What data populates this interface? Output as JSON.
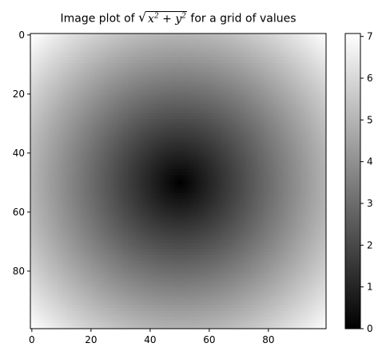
{
  "chart_data": [
    {
      "type": "heatmap",
      "title_text_before": "Image plot of",
      "title_math": {
        "radical_prefix": "√",
        "base1": "x",
        "exp1": "2",
        "op": " + ",
        "base2": "y",
        "exp2": "2"
      },
      "title_text_after": "for a grid of values",
      "function": "sqrt(x^2 + y^2)",
      "grid_size": [
        100,
        100
      ],
      "x_domain": [
        -5,
        4.9
      ],
      "y_domain": [
        -5,
        4.9
      ],
      "xlim": [
        -0.5,
        99.5
      ],
      "ylim": [
        99.5,
        -0.5
      ],
      "x_ticks": [
        "0",
        "20",
        "40",
        "60",
        "80"
      ],
      "y_ticks": [
        "0",
        "20",
        "40",
        "60",
        "80"
      ],
      "colormap": "gray",
      "value_range": [
        0,
        7.07
      ],
      "grid": false
    },
    {
      "type": "colorbar",
      "colormap": "gray",
      "range": [
        0,
        7.07
      ],
      "ticks": [
        "0",
        "1",
        "2",
        "3",
        "4",
        "5",
        "6",
        "7"
      ],
      "orientation": "vertical",
      "placement": "right"
    }
  ]
}
